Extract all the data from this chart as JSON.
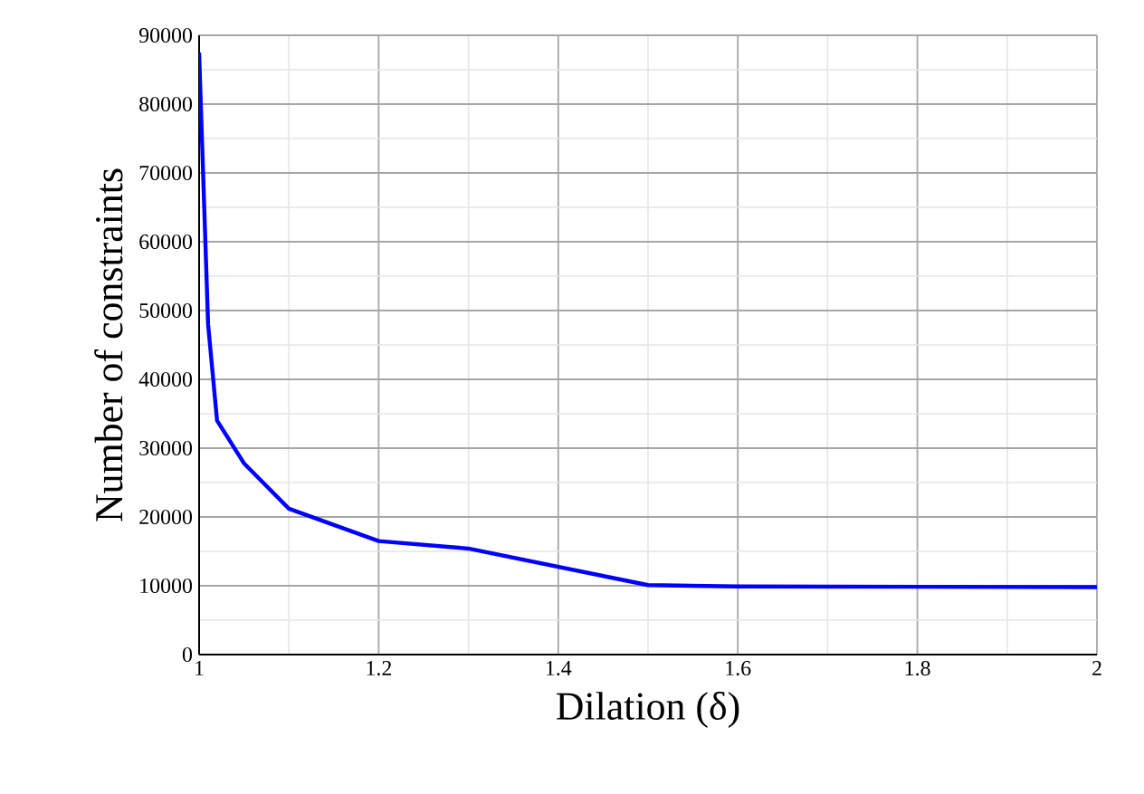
{
  "chart_data": {
    "type": "line",
    "xlabel": "Dilation (δ)",
    "ylabel": "Number of constraints",
    "x": [
      1,
      1.01,
      1.02,
      1.05,
      1.1,
      1.2,
      1.3,
      1.5,
      1.6,
      2
    ],
    "series": [
      {
        "color": "#0000ff",
        "values": [
          87500,
          48000,
          34000,
          27800,
          21200,
          16500,
          15400,
          10100,
          9900,
          9800
        ]
      }
    ],
    "xlim": [
      1,
      2
    ],
    "ylim": [
      0,
      90000
    ],
    "xticks": [
      1,
      1.2,
      1.4,
      1.6,
      1.8,
      2
    ],
    "yticks": [
      0,
      10000,
      20000,
      30000,
      40000,
      50000,
      60000,
      70000,
      80000,
      90000
    ],
    "grid": true,
    "marker": "none",
    "line_style": "solid"
  }
}
